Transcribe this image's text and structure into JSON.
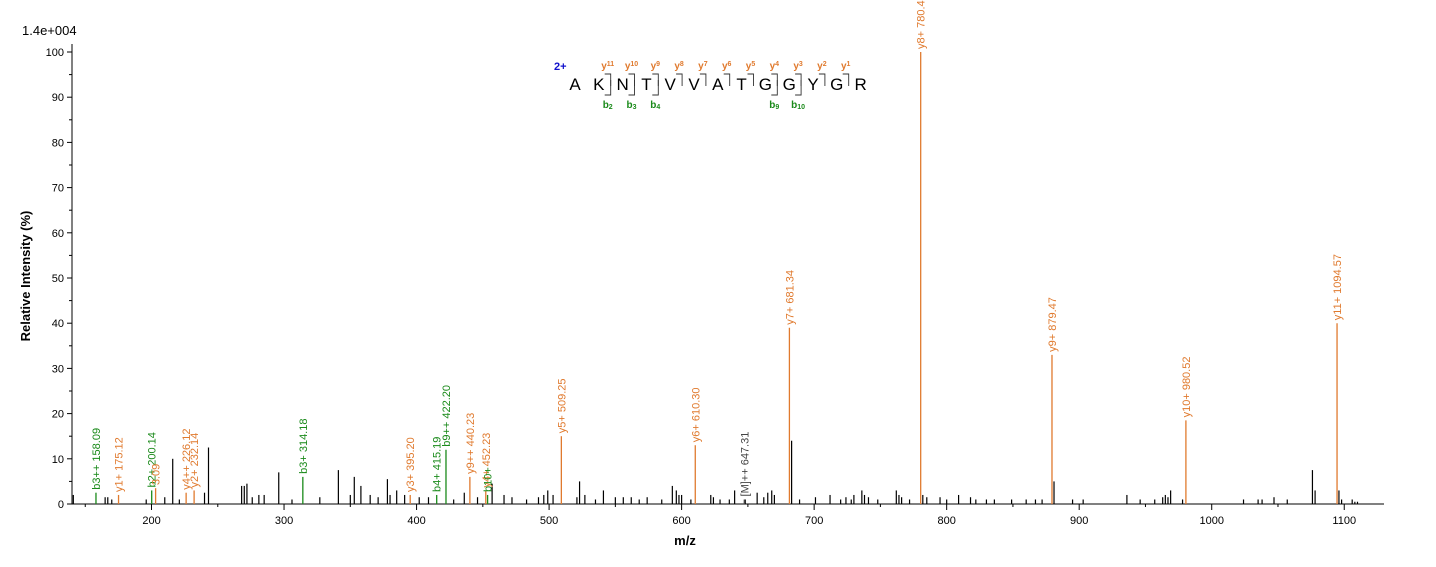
{
  "chart_data": {
    "type": "bar",
    "scale_label": "1.4e+004",
    "xlabel": "m/z",
    "ylabel": "Relative   Intensity (%)",
    "xlim": [
      140,
      1130
    ],
    "ylim": [
      0,
      100
    ],
    "xticks": [
      100,
      200,
      300,
      400,
      500,
      600,
      700,
      800,
      900,
      1000,
      1100
    ],
    "yticks": [
      0,
      10,
      20,
      30,
      40,
      50,
      60,
      70,
      80,
      90,
      100
    ],
    "colors": {
      "y_ion": "#e07a2e",
      "b_ion": "#1a8a1a",
      "other_ion": "#444444",
      "unannotated": "#000000",
      "charge": "#1010cc"
    },
    "annotated_peaks": [
      {
        "mz": 158.09,
        "intensity": 2.5,
        "label": "b3++ 158.09",
        "ion": "b"
      },
      {
        "mz": 175.12,
        "intensity": 2.0,
        "label": "y1+ 175.12",
        "ion": "y"
      },
      {
        "mz": 200.14,
        "intensity": 3.0,
        "label": "b2+ 200.14",
        "ion": "b"
      },
      {
        "mz": 203.09,
        "intensity": 3.5,
        "label": "3.09",
        "ion": "y"
      },
      {
        "mz": 226.12,
        "intensity": 2.5,
        "label": "y4++ 226.12",
        "ion": "y"
      },
      {
        "mz": 232.14,
        "intensity": 3.0,
        "label": "y2+ 232.14",
        "ion": "y"
      },
      {
        "mz": 314.18,
        "intensity": 6.0,
        "label": "b3+ 314.18",
        "ion": "b"
      },
      {
        "mz": 395.2,
        "intensity": 2.0,
        "label": "y3+ 395.20",
        "ion": "y"
      },
      {
        "mz": 415.19,
        "intensity": 2.0,
        "label": "b4+ 415.19",
        "ion": "b"
      },
      {
        "mz": 422.2,
        "intensity": 12.0,
        "label": "b9++ 422.20",
        "ion": "b"
      },
      {
        "mz": 440.23,
        "intensity": 6.0,
        "label": "y9++ 440.23",
        "ion": "y"
      },
      {
        "mz": 452.23,
        "intensity": 3.0,
        "label": "y4+ 452.23",
        "ion": "y"
      },
      {
        "mz": 453.6,
        "intensity": 2.0,
        "label": "b10+",
        "ion": "b"
      },
      {
        "mz": 509.25,
        "intensity": 15.0,
        "label": "y5+ 509.25",
        "ion": "y"
      },
      {
        "mz": 610.3,
        "intensity": 13.0,
        "label": "y6+ 610.30",
        "ion": "y"
      },
      {
        "mz": 647.31,
        "intensity": 1.0,
        "label": "[M]++ 647.31",
        "ion": "other"
      },
      {
        "mz": 681.34,
        "intensity": 39.0,
        "label": "y7+ 681.34",
        "ion": "y"
      },
      {
        "mz": 780.4,
        "intensity": 100.0,
        "label": "y8+ 780.40",
        "ion": "y"
      },
      {
        "mz": 879.47,
        "intensity": 33.0,
        "label": "y9+ 879.47",
        "ion": "y"
      },
      {
        "mz": 980.52,
        "intensity": 18.5,
        "label": "y10+ 980.52",
        "ion": "y"
      },
      {
        "mz": 1094.57,
        "intensity": 40.0,
        "label": "y11+ 1094.57",
        "ion": "y"
      }
    ],
    "unannotated_peaks": [
      [
        141,
        2
      ],
      [
        165,
        1.5
      ],
      [
        167,
        1.5
      ],
      [
        170,
        1
      ],
      [
        196,
        1
      ],
      [
        210,
        1.5
      ],
      [
        216,
        10
      ],
      [
        221,
        1
      ],
      [
        240,
        2.5
      ],
      [
        243,
        12.5
      ],
      [
        268,
        4
      ],
      [
        270,
        4
      ],
      [
        272,
        4.5
      ],
      [
        276,
        1.5
      ],
      [
        281,
        2
      ],
      [
        285,
        2
      ],
      [
        296,
        7
      ],
      [
        306,
        1
      ],
      [
        327,
        1.5
      ],
      [
        341,
        7.5
      ],
      [
        350,
        2
      ],
      [
        353,
        6
      ],
      [
        358,
        4
      ],
      [
        365,
        2
      ],
      [
        371,
        1.5
      ],
      [
        378,
        5.5
      ],
      [
        380,
        2
      ],
      [
        385,
        3
      ],
      [
        391,
        2
      ],
      [
        402,
        1.5
      ],
      [
        409,
        1.5
      ],
      [
        428,
        1
      ],
      [
        436,
        2.5
      ],
      [
        446,
        1.5
      ],
      [
        457,
        4.5
      ],
      [
        466,
        2
      ],
      [
        472,
        1.5
      ],
      [
        483,
        1
      ],
      [
        492,
        1.5
      ],
      [
        496,
        2
      ],
      [
        499,
        3
      ],
      [
        503,
        2
      ],
      [
        521,
        1.5
      ],
      [
        523,
        5
      ],
      [
        527,
        2
      ],
      [
        535,
        1
      ],
      [
        541,
        3
      ],
      [
        550,
        1.5
      ],
      [
        556,
        1.5
      ],
      [
        562,
        1.5
      ],
      [
        568,
        1
      ],
      [
        574,
        1.5
      ],
      [
        585,
        1
      ],
      [
        593,
        4
      ],
      [
        596,
        3
      ],
      [
        598,
        2
      ],
      [
        600,
        2
      ],
      [
        607,
        1
      ],
      [
        622,
        2
      ],
      [
        624,
        1.5
      ],
      [
        629,
        1
      ],
      [
        636,
        1
      ],
      [
        640,
        3
      ],
      [
        648,
        1
      ],
      [
        657,
        2.5
      ],
      [
        662,
        1.5
      ],
      [
        665,
        2.5
      ],
      [
        668,
        3
      ],
      [
        670,
        2
      ],
      [
        683,
        14
      ],
      [
        689,
        1
      ],
      [
        701,
        1.5
      ],
      [
        712,
        2
      ],
      [
        720,
        1
      ],
      [
        724,
        1.5
      ],
      [
        728,
        1
      ],
      [
        730,
        2
      ],
      [
        736,
        3
      ],
      [
        738,
        2
      ],
      [
        741,
        1.5
      ],
      [
        748,
        1
      ],
      [
        762,
        3
      ],
      [
        764,
        2
      ],
      [
        766,
        1.5
      ],
      [
        772,
        1
      ],
      [
        782,
        2
      ],
      [
        785,
        1.5
      ],
      [
        795,
        1.5
      ],
      [
        800,
        1
      ],
      [
        809,
        2
      ],
      [
        818,
        1.5
      ],
      [
        822,
        1
      ],
      [
        830,
        1
      ],
      [
        836,
        1
      ],
      [
        849,
        1
      ],
      [
        860,
        1
      ],
      [
        867,
        1
      ],
      [
        872,
        1
      ],
      [
        881,
        5
      ],
      [
        895,
        1
      ],
      [
        903,
        1
      ],
      [
        936,
        2
      ],
      [
        946,
        1
      ],
      [
        957,
        1
      ],
      [
        963,
        1.5
      ],
      [
        965,
        2
      ],
      [
        967,
        1.5
      ],
      [
        969,
        3
      ],
      [
        978,
        1
      ],
      [
        1024,
        1
      ],
      [
        1035,
        1
      ],
      [
        1038,
        1
      ],
      [
        1047,
        1.5
      ],
      [
        1057,
        1
      ],
      [
        1076,
        7.5
      ],
      [
        1078,
        3
      ],
      [
        1096,
        3
      ],
      [
        1098,
        1
      ],
      [
        1106,
        1
      ],
      [
        1108,
        0.5
      ],
      [
        1110,
        0.5
      ]
    ],
    "peptide": {
      "charge": "2+",
      "sequence": [
        "A",
        "K",
        "N",
        "T",
        "V",
        "V",
        "A",
        "T",
        "G",
        "G",
        "Y",
        "G",
        "R"
      ],
      "y_ions": [
        "11",
        "10",
        "9",
        "8",
        "7",
        "6",
        "5",
        "4",
        "3",
        "2",
        "1"
      ],
      "b_ions": [
        {
          "after_residue": 2,
          "n": "2"
        },
        {
          "after_residue": 3,
          "n": "3"
        },
        {
          "after_residue": 4,
          "n": "4"
        },
        {
          "after_residue": 9,
          "n": "9"
        },
        {
          "after_residue": 10,
          "n": "10"
        }
      ]
    }
  }
}
